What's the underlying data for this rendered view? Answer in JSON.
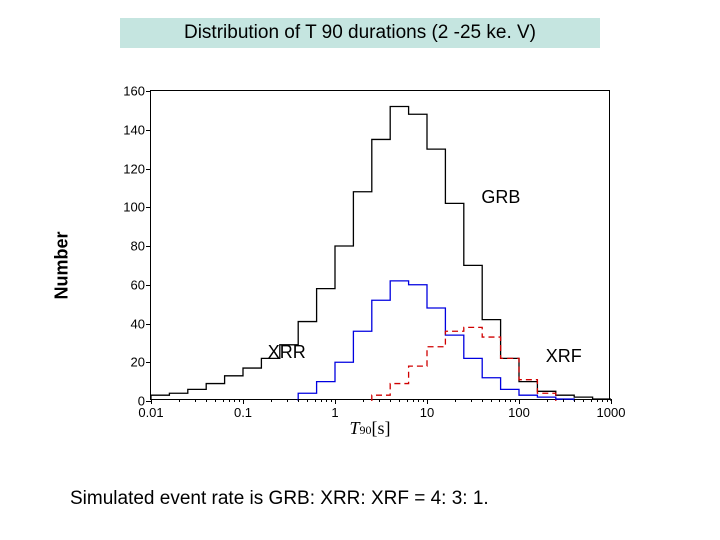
{
  "title": "Distribution of T 90 durations (2 -25 ke. V)",
  "title_bg": "#c5e5e0",
  "ylabel": "Number",
  "xlabel_main": "T",
  "xlabel_sub": "90",
  "xlabel_unit": "[s]",
  "caption": "Simulated event rate is GRB: XRR: XRF = 4: 3: 1. ",
  "annot_grb": "GRB",
  "annot_xrr": "XRR",
  "annot_xrf": "XRF",
  "chart": {
    "ylim": [
      0,
      160
    ],
    "yticks": [
      0,
      20,
      40,
      60,
      80,
      100,
      120,
      140,
      160
    ],
    "xlog_min": 0.01,
    "xlog_max": 1000,
    "xtick_values": [
      0.01,
      0.1,
      1,
      10,
      100,
      1000
    ],
    "xtick_labels": [
      "0.01",
      "0.1",
      "1",
      "10",
      "100",
      "1000"
    ],
    "background_color": "#ffffff",
    "axis_color": "#000000",
    "series": {
      "grb": {
        "color": "#000000",
        "stroke_width": 1.3,
        "bins_log10": [
          -2.0,
          -1.8,
          -1.6,
          -1.4,
          -1.2,
          -1.0,
          -0.8,
          -0.6,
          -0.4,
          -0.2,
          0.0,
          0.2,
          0.4,
          0.6,
          0.8,
          1.0,
          1.2,
          1.4,
          1.6,
          1.8,
          2.0,
          2.2,
          2.4,
          2.6,
          2.8,
          3.0
        ],
        "counts": [
          3,
          4,
          6,
          9,
          13,
          17,
          22,
          29,
          41,
          58,
          80,
          108,
          135,
          152,
          148,
          130,
          102,
          70,
          42,
          22,
          10,
          5,
          3,
          2,
          1
        ]
      },
      "xrr": {
        "color": "#0000e0",
        "stroke_width": 1.3,
        "bins_log10": [
          -0.4,
          -0.2,
          0.0,
          0.2,
          0.4,
          0.6,
          0.8,
          1.0,
          1.2,
          1.4,
          1.6,
          1.8,
          2.0,
          2.2,
          2.4,
          2.6
        ],
        "counts": [
          4,
          10,
          20,
          36,
          52,
          62,
          60,
          48,
          34,
          22,
          12,
          6,
          3,
          2,
          1
        ]
      },
      "xrf": {
        "color": "#d00000",
        "stroke_width": 1.3,
        "dash": "6,4",
        "bins_log10": [
          0.4,
          0.6,
          0.8,
          1.0,
          1.2,
          1.4,
          1.6,
          1.8,
          2.0,
          2.2,
          2.4
        ],
        "counts": [
          3,
          9,
          18,
          28,
          36,
          38,
          33,
          22,
          11,
          4
        ]
      }
    }
  }
}
